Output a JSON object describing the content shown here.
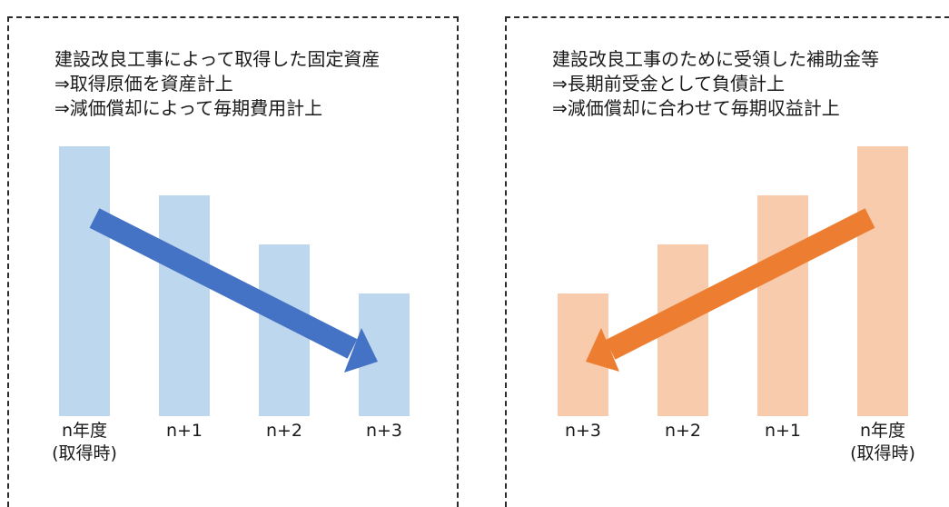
{
  "left_panel": {
    "caption": {
      "line1": "建設改良工事によって取得した固定資産",
      "line2": "⇒取得原価を資産計上",
      "line3": "⇒減価償却によって毎期費用計上"
    },
    "bars": [
      {
        "label": "n年度",
        "sublabel": "(取得時)",
        "value": 4
      },
      {
        "label": "n+1",
        "value": 3
      },
      {
        "label": "n+2",
        "value": 2
      },
      {
        "label": "n+3",
        "value": 1
      }
    ],
    "bar_color": "#bdd7ee",
    "arrow_color": "#4472c4",
    "arrow_direction": "down-right"
  },
  "right_panel": {
    "caption": {
      "line1": "建設改良工事のために受領した補助金等",
      "line2": "⇒長期前受金として負債計上",
      "line3": "⇒減価償却に合わせて毎期収益計上"
    },
    "bars": [
      {
        "label": "n+3",
        "value": 1
      },
      {
        "label": "n+2",
        "value": 2
      },
      {
        "label": "n+1",
        "value": 3
      },
      {
        "label": "n年度",
        "sublabel": "(取得時)",
        "value": 4
      }
    ],
    "bar_color": "#f8cbad",
    "arrow_color": "#ed7d31",
    "arrow_direction": "down-left"
  }
}
